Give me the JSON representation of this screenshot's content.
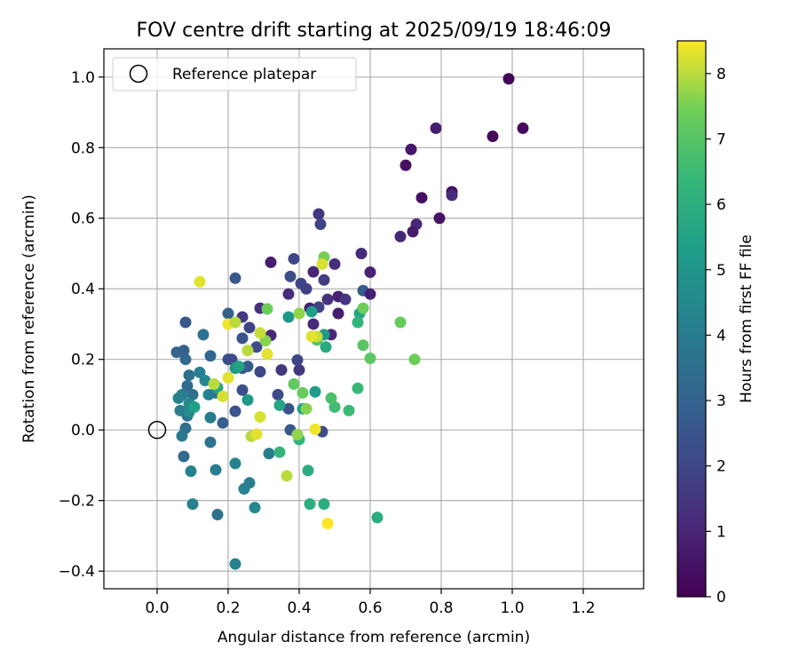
{
  "chart_data": {
    "type": "scatter",
    "title": "FOV centre drift starting at 2025/09/19 18:46:09",
    "xlabel": "Angular distance from reference (arcmin)",
    "ylabel": "Rotation from reference (arcmin)",
    "xlim": [
      -0.15,
      1.37
    ],
    "ylim": [
      -0.45,
      1.08
    ],
    "xticks": [
      0.0,
      0.2,
      0.4,
      0.6,
      0.8,
      1.0,
      1.2
    ],
    "xtick_labels": [
      "0.0",
      "0.2",
      "0.4",
      "0.6",
      "0.8",
      "1.0",
      "1.2"
    ],
    "yticks": [
      -0.4,
      -0.2,
      0.0,
      0.2,
      0.4,
      0.6,
      0.8,
      1.0
    ],
    "ytick_labels": [
      "−0.4",
      "−0.2",
      "0.0",
      "0.2",
      "0.4",
      "0.6",
      "0.8",
      "1.0"
    ],
    "grid": true,
    "legend": {
      "placement": "top-left",
      "entries": [
        "Reference platepar"
      ]
    },
    "reference_point": {
      "x": 0.0,
      "y": 0.0,
      "label": "Reference platepar"
    },
    "colorbar": {
      "label": "Hours from first FF file",
      "range": [
        0,
        8.5
      ],
      "ticks": [
        0,
        1,
        2,
        3,
        4,
        5,
        6,
        7,
        8
      ],
      "tick_labels": [
        "0",
        "1",
        "2",
        "3",
        "4",
        "5",
        "6",
        "7",
        "8"
      ],
      "colormap": "viridis"
    },
    "series": [
      {
        "name": "FOV centre drift",
        "points": [
          {
            "x": 0.99,
            "y": 0.995,
            "h": 0.1
          },
          {
            "x": 1.03,
            "y": 0.855,
            "h": 0.3
          },
          {
            "x": 0.945,
            "y": 0.832,
            "h": 0.2
          },
          {
            "x": 0.785,
            "y": 0.855,
            "h": 0.8
          },
          {
            "x": 0.715,
            "y": 0.795,
            "h": 0.6
          },
          {
            "x": 0.7,
            "y": 0.75,
            "h": 0.4
          },
          {
            "x": 0.83,
            "y": 0.675,
            "h": 0.3
          },
          {
            "x": 0.83,
            "y": 0.665,
            "h": 1.2
          },
          {
            "x": 0.745,
            "y": 0.658,
            "h": 0.4
          },
          {
            "x": 0.795,
            "y": 0.6,
            "h": 0.5
          },
          {
            "x": 0.73,
            "y": 0.583,
            "h": 1.1
          },
          {
            "x": 0.72,
            "y": 0.562,
            "h": 0.7
          },
          {
            "x": 0.685,
            "y": 0.548,
            "h": 1.0
          },
          {
            "x": 0.455,
            "y": 0.612,
            "h": 1.5
          },
          {
            "x": 0.46,
            "y": 0.583,
            "h": 1.9
          },
          {
            "x": 0.575,
            "y": 0.5,
            "h": 1.2
          },
          {
            "x": 0.385,
            "y": 0.485,
            "h": 2.0
          },
          {
            "x": 0.32,
            "y": 0.475,
            "h": 0.8
          },
          {
            "x": 0.5,
            "y": 0.47,
            "h": 1.3
          },
          {
            "x": 0.44,
            "y": 0.448,
            "h": 1.0
          },
          {
            "x": 0.6,
            "y": 0.447,
            "h": 0.9
          },
          {
            "x": 0.375,
            "y": 0.435,
            "h": 2.2
          },
          {
            "x": 0.47,
            "y": 0.425,
            "h": 1.7
          },
          {
            "x": 0.405,
            "y": 0.415,
            "h": 2.0
          },
          {
            "x": 0.42,
            "y": 0.4,
            "h": 1.8
          },
          {
            "x": 0.58,
            "y": 0.395,
            "h": 2.8
          },
          {
            "x": 0.6,
            "y": 0.385,
            "h": 0.9
          },
          {
            "x": 0.37,
            "y": 0.385,
            "h": 1.2
          },
          {
            "x": 0.48,
            "y": 0.37,
            "h": 1.4
          },
          {
            "x": 0.51,
            "y": 0.378,
            "h": 0.9
          },
          {
            "x": 0.53,
            "y": 0.37,
            "h": 1.5
          },
          {
            "x": 0.43,
            "y": 0.345,
            "h": 0.8
          },
          {
            "x": 0.455,
            "y": 0.348,
            "h": 1.8
          },
          {
            "x": 0.51,
            "y": 0.33,
            "h": 0.8
          },
          {
            "x": 0.29,
            "y": 0.345,
            "h": 1.3
          },
          {
            "x": 0.44,
            "y": 0.3,
            "h": 1.2
          },
          {
            "x": 0.49,
            "y": 0.27,
            "h": 1.0
          },
          {
            "x": 0.32,
            "y": 0.268,
            "h": 1.0
          },
          {
            "x": 0.22,
            "y": 0.43,
            "h": 2.6
          },
          {
            "x": 0.2,
            "y": 0.33,
            "h": 2.9
          },
          {
            "x": 0.24,
            "y": 0.32,
            "h": 1.6
          },
          {
            "x": 0.26,
            "y": 0.29,
            "h": 1.9
          },
          {
            "x": 0.24,
            "y": 0.26,
            "h": 2.4
          },
          {
            "x": 0.28,
            "y": 0.235,
            "h": 2.2
          },
          {
            "x": 0.29,
            "y": 0.165,
            "h": 2.1
          },
          {
            "x": 0.24,
            "y": 0.175,
            "h": 2.5
          },
          {
            "x": 0.2,
            "y": 0.2,
            "h": 2.3
          },
          {
            "x": 0.255,
            "y": 0.18,
            "h": 2.8
          },
          {
            "x": 0.21,
            "y": 0.2,
            "h": 2.2
          },
          {
            "x": 0.35,
            "y": 0.17,
            "h": 1.5
          },
          {
            "x": 0.4,
            "y": 0.17,
            "h": 1.6
          },
          {
            "x": 0.395,
            "y": 0.198,
            "h": 2.0
          },
          {
            "x": 0.34,
            "y": 0.1,
            "h": 2.2
          },
          {
            "x": 0.37,
            "y": 0.06,
            "h": 2.4
          },
          {
            "x": 0.24,
            "y": 0.113,
            "h": 2.3
          },
          {
            "x": 0.22,
            "y": 0.053,
            "h": 2.5
          },
          {
            "x": 0.185,
            "y": 0.02,
            "h": 2.9
          },
          {
            "x": 0.375,
            "y": 0.0,
            "h": 2.6
          },
          {
            "x": 0.465,
            "y": -0.005,
            "h": 2.2
          },
          {
            "x": 0.08,
            "y": 0.305,
            "h": 2.7
          },
          {
            "x": 0.075,
            "y": 0.225,
            "h": 2.9
          },
          {
            "x": 0.055,
            "y": 0.22,
            "h": 3.0
          },
          {
            "x": 0.08,
            "y": 0.2,
            "h": 3.2
          },
          {
            "x": 0.13,
            "y": 0.27,
            "h": 3.6
          },
          {
            "x": 0.15,
            "y": 0.21,
            "h": 3.1
          },
          {
            "x": 0.09,
            "y": 0.155,
            "h": 3.5
          },
          {
            "x": 0.12,
            "y": 0.163,
            "h": 4.1
          },
          {
            "x": 0.135,
            "y": 0.14,
            "h": 4.4
          },
          {
            "x": 0.085,
            "y": 0.125,
            "h": 3.3
          },
          {
            "x": 0.07,
            "y": 0.1,
            "h": 4.0
          },
          {
            "x": 0.1,
            "y": 0.1,
            "h": 3.6
          },
          {
            "x": 0.145,
            "y": 0.1,
            "h": 4.3
          },
          {
            "x": 0.165,
            "y": 0.105,
            "h": 3.8
          },
          {
            "x": 0.06,
            "y": 0.09,
            "h": 4.2
          },
          {
            "x": 0.09,
            "y": 0.075,
            "h": 4.5
          },
          {
            "x": 0.065,
            "y": 0.055,
            "h": 4.1
          },
          {
            "x": 0.085,
            "y": 0.04,
            "h": 3.7
          },
          {
            "x": 0.09,
            "y": 0.05,
            "h": 4.6
          },
          {
            "x": 0.15,
            "y": 0.035,
            "h": 4.0
          },
          {
            "x": 0.08,
            "y": 0.005,
            "h": 3.4
          },
          {
            "x": 0.07,
            "y": -0.017,
            "h": 3.9
          },
          {
            "x": 0.15,
            "y": -0.035,
            "h": 3.6
          },
          {
            "x": 0.075,
            "y": -0.075,
            "h": 3.2
          },
          {
            "x": 0.095,
            "y": -0.117,
            "h": 4.2
          },
          {
            "x": 0.165,
            "y": -0.113,
            "h": 4.0
          },
          {
            "x": 0.22,
            "y": -0.095,
            "h": 4.3
          },
          {
            "x": 0.26,
            "y": -0.15,
            "h": 4.1
          },
          {
            "x": 0.245,
            "y": -0.167,
            "h": 4.2
          },
          {
            "x": 0.315,
            "y": -0.067,
            "h": 4.0
          },
          {
            "x": 0.275,
            "y": -0.22,
            "h": 4.4
          },
          {
            "x": 0.1,
            "y": -0.21,
            "h": 4.2
          },
          {
            "x": 0.17,
            "y": -0.24,
            "h": 3.5
          },
          {
            "x": 0.22,
            "y": -0.38,
            "h": 4.2
          },
          {
            "x": 0.37,
            "y": 0.32,
            "h": 5.0
          },
          {
            "x": 0.435,
            "y": 0.335,
            "h": 5.3
          },
          {
            "x": 0.47,
            "y": 0.27,
            "h": 5.1
          },
          {
            "x": 0.255,
            "y": 0.085,
            "h": 5.1
          },
          {
            "x": 0.22,
            "y": 0.175,
            "h": 5.0
          },
          {
            "x": 0.23,
            "y": 0.18,
            "h": 5.5
          },
          {
            "x": 0.17,
            "y": 0.12,
            "h": 5.7
          },
          {
            "x": 0.105,
            "y": 0.065,
            "h": 5.4
          },
          {
            "x": 0.445,
            "y": 0.108,
            "h": 5.2
          },
          {
            "x": 0.345,
            "y": 0.07,
            "h": 5.6
          },
          {
            "x": 0.41,
            "y": 0.06,
            "h": 5.4
          },
          {
            "x": 0.475,
            "y": 0.235,
            "h": 5.8
          },
          {
            "x": 0.57,
            "y": 0.33,
            "h": 5.6
          },
          {
            "x": 0.565,
            "y": 0.305,
            "h": 6.3
          },
          {
            "x": 0.345,
            "y": -0.063,
            "h": 6.3
          },
          {
            "x": 0.4,
            "y": -0.027,
            "h": 6.2
          },
          {
            "x": 0.425,
            "y": -0.115,
            "h": 5.9
          },
          {
            "x": 0.43,
            "y": -0.21,
            "h": 6.0
          },
          {
            "x": 0.47,
            "y": -0.21,
            "h": 6.0
          },
          {
            "x": 0.62,
            "y": -0.248,
            "h": 5.9
          },
          {
            "x": 0.565,
            "y": 0.118,
            "h": 6.4
          },
          {
            "x": 0.5,
            "y": 0.065,
            "h": 6.6
          },
          {
            "x": 0.54,
            "y": 0.055,
            "h": 6.5
          },
          {
            "x": 0.49,
            "y": 0.09,
            "h": 6.8
          },
          {
            "x": 0.45,
            "y": 0.255,
            "h": 6.9
          },
          {
            "x": 0.58,
            "y": 0.24,
            "h": 7.0
          },
          {
            "x": 0.6,
            "y": 0.203,
            "h": 7.1
          },
          {
            "x": 0.58,
            "y": 0.345,
            "h": 7.4
          },
          {
            "x": 0.685,
            "y": 0.305,
            "h": 7.3
          },
          {
            "x": 0.725,
            "y": 0.2,
            "h": 7.4
          },
          {
            "x": 0.385,
            "y": 0.13,
            "h": 7.2
          },
          {
            "x": 0.41,
            "y": 0.105,
            "h": 7.3
          },
          {
            "x": 0.42,
            "y": 0.06,
            "h": 7.6
          },
          {
            "x": 0.395,
            "y": -0.013,
            "h": 7.7
          },
          {
            "x": 0.305,
            "y": 0.253,
            "h": 7.6
          },
          {
            "x": 0.31,
            "y": 0.343,
            "h": 7.4
          },
          {
            "x": 0.4,
            "y": 0.33,
            "h": 7.7
          },
          {
            "x": 0.47,
            "y": 0.49,
            "h": 7.5
          },
          {
            "x": 0.465,
            "y": 0.47,
            "h": 8.2
          },
          {
            "x": 0.45,
            "y": 0.265,
            "h": 8.1
          },
          {
            "x": 0.435,
            "y": 0.265,
            "h": 8.3
          },
          {
            "x": 0.12,
            "y": 0.42,
            "h": 8.3
          },
          {
            "x": 0.2,
            "y": 0.3,
            "h": 8.4
          },
          {
            "x": 0.22,
            "y": 0.305,
            "h": 8.0
          },
          {
            "x": 0.29,
            "y": 0.275,
            "h": 8.1
          },
          {
            "x": 0.31,
            "y": 0.215,
            "h": 8.3
          },
          {
            "x": 0.255,
            "y": 0.225,
            "h": 8.0
          },
          {
            "x": 0.2,
            "y": 0.148,
            "h": 8.3
          },
          {
            "x": 0.16,
            "y": 0.13,
            "h": 8.0
          },
          {
            "x": 0.185,
            "y": 0.095,
            "h": 8.2
          },
          {
            "x": 0.29,
            "y": 0.037,
            "h": 8.2
          },
          {
            "x": 0.265,
            "y": -0.018,
            "h": 8.0
          },
          {
            "x": 0.28,
            "y": -0.012,
            "h": 8.3
          },
          {
            "x": 0.365,
            "y": -0.13,
            "h": 8.0
          },
          {
            "x": 0.445,
            "y": 0.002,
            "h": 8.4
          },
          {
            "x": 0.48,
            "y": -0.265,
            "h": 8.5
          }
        ]
      }
    ]
  }
}
